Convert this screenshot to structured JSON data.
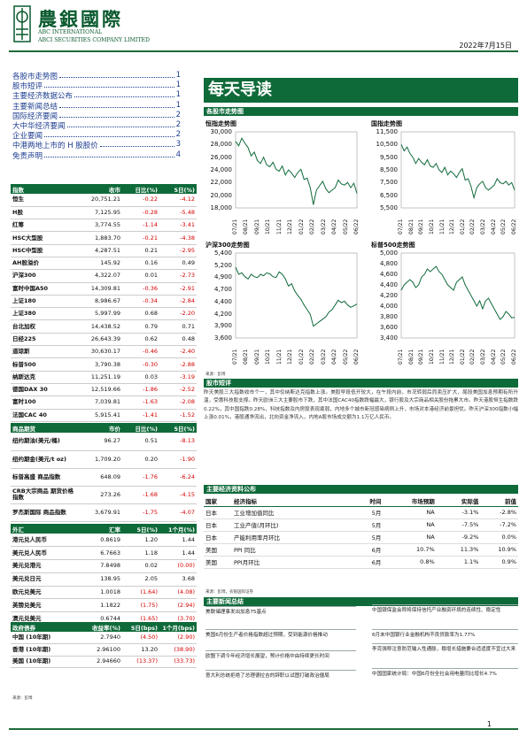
{
  "header": {
    "logo_cn": "農銀國際",
    "logo_en1": "ABC INTERNATIONAL",
    "logo_en2": "ABCI SECURITIES COMPANY LIMITED",
    "date": "2022年7月15日",
    "brand_color": "#0f6a3a"
  },
  "toc": [
    {
      "t": "各股市走势图",
      "p": "1"
    },
    {
      "t": "股市短评",
      "p": "1"
    },
    {
      "t": "主要经济数据公布",
      "p": "1"
    },
    {
      "t": "主要新闻总结",
      "p": "1"
    },
    {
      "t": "国际经济要闻",
      "p": "2"
    },
    {
      "t": "大中华经济要闻",
      "p": "2"
    },
    {
      "t": "企业要闻",
      "p": "2"
    },
    {
      "t": "中港两地上市的 H 股股价",
      "p": "3"
    },
    {
      "t": "免责声明",
      "p": "4"
    }
  ],
  "page_title": "每天导读",
  "sections": {
    "charts": "各股市走势图",
    "commentary": "股市短评",
    "econ": "主要经济资料公布",
    "news": "主要新闻总结"
  },
  "chart_data": [
    {
      "type": "line",
      "title": "恒指走势图",
      "ylim": [
        18000,
        30000
      ],
      "yticks": [
        "30,000",
        "28,000",
        "26,000",
        "24,000",
        "22,000",
        "20,000",
        "18,000"
      ],
      "xticks": [
        "07/21",
        "08/21",
        "09/21",
        "10/21",
        "11/21",
        "12/21",
        "01/22",
        "02/22",
        "03/22",
        "04/22",
        "05/22",
        "06/22"
      ],
      "values": [
        28500,
        27800,
        29000,
        28200,
        27500,
        26200,
        26800,
        25500,
        25000,
        26000,
        24800,
        24500,
        25200,
        24100,
        23800,
        24600,
        23200,
        24000,
        23500,
        22800,
        23600,
        24100,
        22500,
        22700,
        21200,
        18500,
        20800,
        21500,
        22200,
        21000,
        20400,
        20800,
        21200,
        22400,
        21800,
        21600,
        22000,
        21200,
        21900,
        20300
      ]
    },
    {
      "type": "line",
      "title": "国指走势图",
      "ylim": [
        5500,
        11500
      ],
      "yticks": [
        "11,500",
        "10,500",
        "9,500",
        "8,500",
        "7,500",
        "6,500",
        "5,500"
      ],
      "xticks": [
        "07/21",
        "08/21",
        "09/21",
        "10/21",
        "11/21",
        "12/21",
        "01/22",
        "02/22",
        "03/22",
        "04/22",
        "05/22",
        "06/22"
      ],
      "values": [
        10500,
        10000,
        10300,
        9800,
        9500,
        9000,
        9400,
        9100,
        8900,
        9300,
        8800,
        8700,
        9000,
        8500,
        8300,
        8700,
        8100,
        8400,
        8200,
        7900,
        8300,
        8600,
        7700,
        7800,
        7200,
        6300,
        7100,
        7400,
        7600,
        7100,
        6900,
        7100,
        7300,
        7800,
        7500,
        7400,
        7600,
        7300,
        7500,
        6900
      ]
    },
    {
      "type": "line",
      "title": "沪深300走势图",
      "ylim": [
        3600,
        5400
      ],
      "yticks": [
        "5,400",
        "5,200",
        "4,900",
        "4,700",
        "4,400",
        "4,200",
        "3,900",
        "3,600"
      ],
      "xticks": [
        "07/21",
        "08/21",
        "09/21",
        "10/21",
        "11/21",
        "12/21",
        "01/22",
        "02/22",
        "03/22",
        "04/22",
        "05/22",
        "06/22"
      ],
      "values": [
        5100,
        4950,
        4980,
        4900,
        4850,
        4950,
        4900,
        4880,
        4950,
        4920,
        4980,
        4960,
        4900,
        4880,
        5000,
        4950,
        4850,
        4700,
        4750,
        4600,
        4500,
        4420,
        4300,
        4200,
        4100,
        3850,
        3900,
        3950,
        4000,
        4050,
        4150,
        4200,
        4300,
        4400,
        4350,
        4380,
        4300,
        4250,
        4280,
        4320
      ]
    },
    {
      "type": "line",
      "title": "标普500走势图",
      "ylim": [
        3400,
        5000
      ],
      "yticks": [
        "5,000",
        "4,800",
        "4,600",
        "4,400",
        "4,200",
        "4,000",
        "3,800",
        "3,600",
        "3,400"
      ],
      "xticks": [
        "07/21",
        "08/21",
        "09/21",
        "10/21",
        "11/21",
        "12/21",
        "01/22",
        "02/22",
        "03/22",
        "04/22",
        "05/22",
        "06/22"
      ],
      "values": [
        4300,
        4400,
        4450,
        4500,
        4450,
        4350,
        4400,
        4550,
        4600,
        4700,
        4650,
        4700,
        4750,
        4650,
        4600,
        4500,
        4400,
        4350,
        4300,
        4450,
        4500,
        4550,
        4400,
        4300,
        4200,
        4100,
        4000,
        4100,
        3950,
        4100,
        4150,
        4050,
        3950,
        3850,
        3750,
        3800,
        3900,
        3850,
        3780,
        3790
      ]
    }
  ],
  "chart_source": "来源：彭博",
  "indices": {
    "head": [
      "指数",
      "收市",
      "日比(%)",
      "5日(%)"
    ],
    "rows": [
      [
        "恒生",
        "20,751.21",
        "-0.22",
        "-4.12"
      ],
      [
        "H股",
        "7,125.95",
        "-0.28",
        "-5.48"
      ],
      [
        "红筹",
        "3,774.55",
        "-1.14",
        "-3.41"
      ],
      [
        "HSC大型股",
        "1,883.70",
        "-0.21",
        "-4.38"
      ],
      [
        "HSC中型股",
        "4,287.51",
        "0.21",
        "-2.95"
      ],
      [
        "AH股溢价",
        "145.92",
        "0.16",
        "0.49"
      ],
      [
        "沪深300",
        "4,322.07",
        "0.01",
        "-2.73"
      ],
      [
        "富时中国A50",
        "14,309.81",
        "-0.36",
        "-2.91"
      ],
      [
        "上证180",
        "8,986.67",
        "-0.34",
        "-2.84"
      ],
      [
        "上证380",
        "5,997.99",
        "0.68",
        "-2.20"
      ],
      [
        "台北加权",
        "14,438.52",
        "0.79",
        "0.71"
      ],
      [
        "日经225",
        "26,643.39",
        "0.62",
        "0.48"
      ],
      [
        "道琼斯",
        "30,630.17",
        "-0.46",
        "-2.40"
      ],
      [
        "标普500",
        "3,790.38",
        "-0.30",
        "-2.88"
      ],
      [
        "纳斯达克",
        "11,251.19",
        "0.03",
        "-3.19"
      ],
      [
        "德国DAX 30",
        "12,519.66",
        "-1.86",
        "-2.52"
      ],
      [
        "富时100",
        "7,039.81",
        "-1.63",
        "-2.08"
      ],
      [
        "法国CAC 40",
        "5,915.41",
        "-1.41",
        "-1.52"
      ]
    ]
  },
  "commodities": {
    "head": [
      "商品期货",
      "市价",
      "日比(%)",
      "5日(%)"
    ],
    "rows": [
      [
        "纽约期油(美元/桶)",
        "96.27",
        "0.51",
        "-8.13"
      ],
      [
        "纽约期金(美元/t oz)",
        "1,709.20",
        "0.20",
        "-1.90"
      ],
      [
        "标普高盛 商品指数",
        "648.09",
        "-1.76",
        "-6.24"
      ],
      [
        "CRB大宗商品 期货价格指数",
        "273.26",
        "-1.68",
        "-4.15"
      ],
      [
        "罗杰斯国际 商品指数",
        "3,679.91",
        "-1.75",
        "-4.07"
      ]
    ]
  },
  "fx": {
    "head": [
      "外汇",
      "汇率",
      "5日(%)",
      "1个月(%)"
    ],
    "rows": [
      [
        "港元兑人民币",
        "0.8619",
        "1.20",
        "1.44"
      ],
      [
        "美元兑人民币",
        "6.7663",
        "1.18",
        "1.44"
      ],
      [
        "美元兑港元",
        "7.8498",
        "0.02",
        "(0.00)"
      ],
      [
        "美元兑日元",
        "138.95",
        "2.05",
        "3.68"
      ],
      [
        "欧元兑美元",
        "1.0018",
        "(1.64)",
        "(4.08)"
      ],
      [
        "英镑兑美元",
        "1.1822",
        "(1.75)",
        "(2.94)"
      ],
      [
        "澳元兑美元",
        "0.6744",
        "(1.65)",
        "(3.70)"
      ]
    ]
  },
  "bonds": {
    "head": [
      "政府债券",
      "收益率(%)",
      "5日(bps)",
      "1个月(bps)"
    ],
    "rows": [
      [
        "中国 (10年期)",
        "2.7940",
        "(4.50)",
        "(2.90)"
      ],
      [
        "香港 (10年期)",
        "2.96100",
        "13.20",
        "(38.90)"
      ],
      [
        "美国 (10年期)",
        "2.94660",
        "(13.37)",
        "(33.73)"
      ]
    ]
  },
  "left_source": "来源：彭博",
  "commentary": "昨天美股三大指数收市个一，其中仅纳斯达克指数上涨。美股早段低开较大，在午段内前，市况转弱后而卖压扩大，尾段美国加息预期有所升温，受惠科技股支撑。昨天欧洲三大主要股市下跌，其中法国CAC40指数跌幅最大，银行股及大宗商品相关股份拖累大市。昨天港股恒生指数跌0.22%，其中国指跌0.28%，科技指数及内房股表现疲弱，内地多个城市新冠感染病例上升，市场对本港经济前景担忧。昨天沪深300指数小幅上涨0.01%，港股通净流出，北向资金净流入，内地A股市场成交额为1.1万亿人民币。",
  "econ": {
    "head": [
      "国家",
      "经济指标",
      "时间",
      "市场预期",
      "实际值",
      "前值"
    ],
    "rows": [
      [
        "日本",
        "工业增加值同比",
        "5月",
        "NA",
        "-3.1%",
        "-2.8%"
      ],
      [
        "日本",
        "工业产值(月环比)",
        "5月",
        "NA",
        "-7.5%",
        "-7.2%"
      ],
      [
        "日本",
        "产能利用率月环比",
        "5月",
        "NA",
        "-9.2%",
        "0.0%"
      ],
      [
        "美国",
        "PPI 同比",
        "6月",
        "10.7%",
        "11.3%",
        "10.9%"
      ],
      [
        "美国",
        "PPI月环比",
        "6月",
        "0.8%",
        "1.1%",
        "0.9%"
      ]
    ],
    "source": "来源：彭博，农银国际证券"
  },
  "news_left": [
    "美联储理事发出加息75基点",
    "美国6月份生产者价格指数超过预期，受到能源价格推动",
    "欧盟下调今年经济增长展望，预计价格中由持续更长时间",
    "意大利总统拒绝了总理德拉吉的辞职以试图打破政治僵局"
  ],
  "news_right": [
    "中国银保监会称将保持信托产业融资环境的连续性、稳定性",
    "6月末中国银行业金融机构不良贷款率为1.77%",
    "李克强称注意防范输入性通胀，稳增长措施要合适适度不宜过大来",
    "中国国家统计局：中国6月份全社会用电量同比增长4.7%"
  ],
  "page_number": "1"
}
